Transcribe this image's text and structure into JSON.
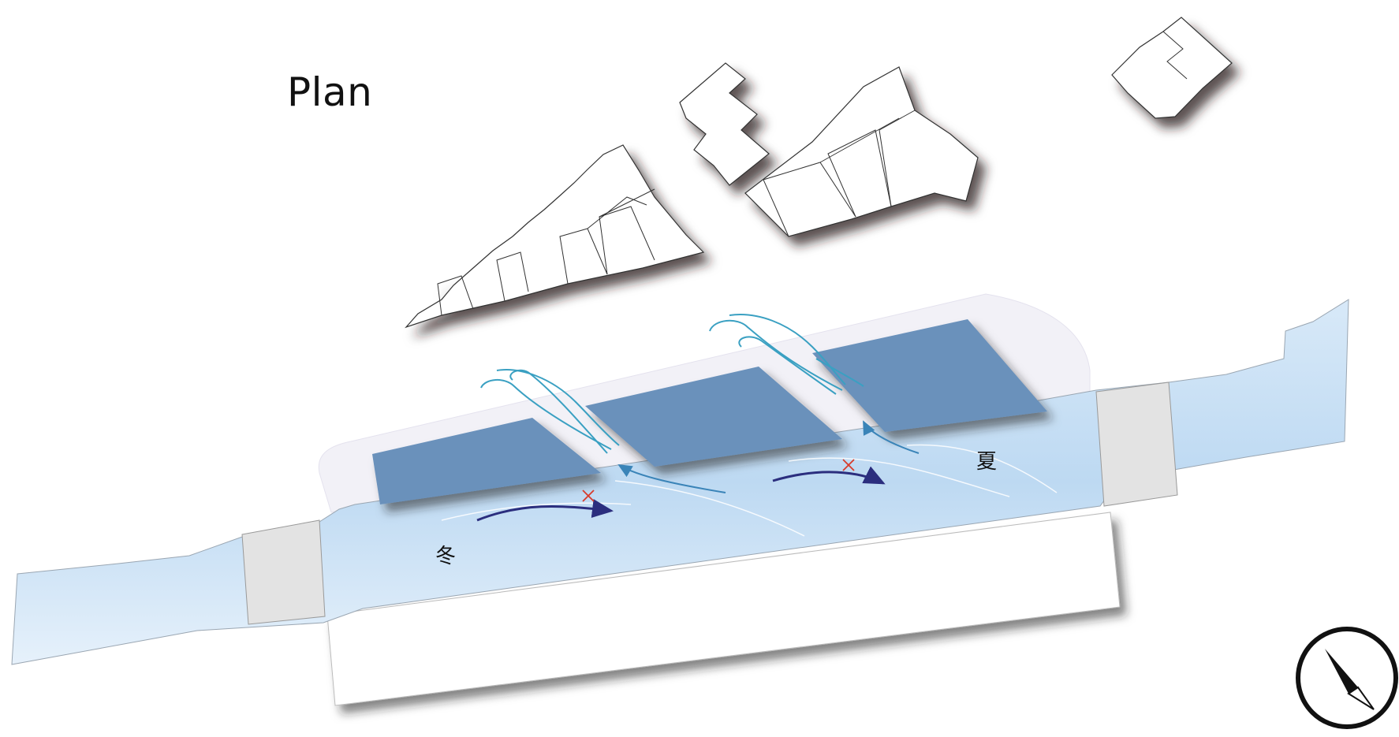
{
  "diagram": {
    "title": "Plan",
    "season_winter": "冬",
    "season_summer": "夏"
  },
  "colors": {
    "water": "#c6dff4",
    "deck": "#6a91bb",
    "bridge": "#e3e3e3",
    "wind": "#3aa0c2",
    "flow_arrow": "#2b2e7e",
    "blocked_mark": "#d83a2a"
  },
  "icons": {
    "compass": "north-arrow-icon"
  }
}
